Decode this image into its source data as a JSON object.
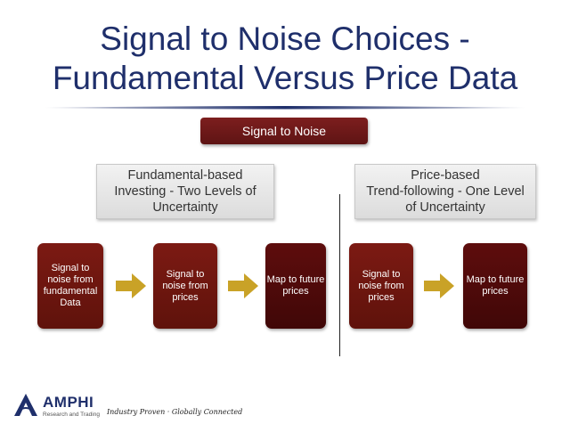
{
  "title": {
    "line1": "Signal to Noise Choices -",
    "line2": "Fundamental Versus Price Data"
  },
  "colors": {
    "title": "#1f2f6b",
    "box_red": "#6d1811",
    "box_dark": "#4a0a0a",
    "arrow": "#c9a227"
  },
  "signal_to_noise": "Signal to Noise",
  "left": {
    "header": [
      "Fundamental-based",
      "Investing - Two Levels of",
      "Uncertainty"
    ],
    "boxes": [
      [
        "Signal to",
        "noise from",
        "fundamental",
        "Data"
      ],
      [
        "Signal to",
        "noise from",
        "prices"
      ],
      [
        "Map to future",
        "prices"
      ]
    ]
  },
  "right": {
    "header": [
      "Price-based",
      "Trend-following - One Level",
      "of Uncertainty"
    ],
    "boxes": [
      [
        "Signal to",
        "noise from",
        "prices"
      ],
      [
        "Map to future",
        "prices"
      ]
    ]
  },
  "footer": {
    "logo_name": "AMPHI",
    "logo_sub": "Research and Trading",
    "tagline": "Industry Proven · Globally Connected"
  },
  "icons": {
    "arrow": "right-arrow-icon",
    "logo": "amphi-logo-icon"
  }
}
